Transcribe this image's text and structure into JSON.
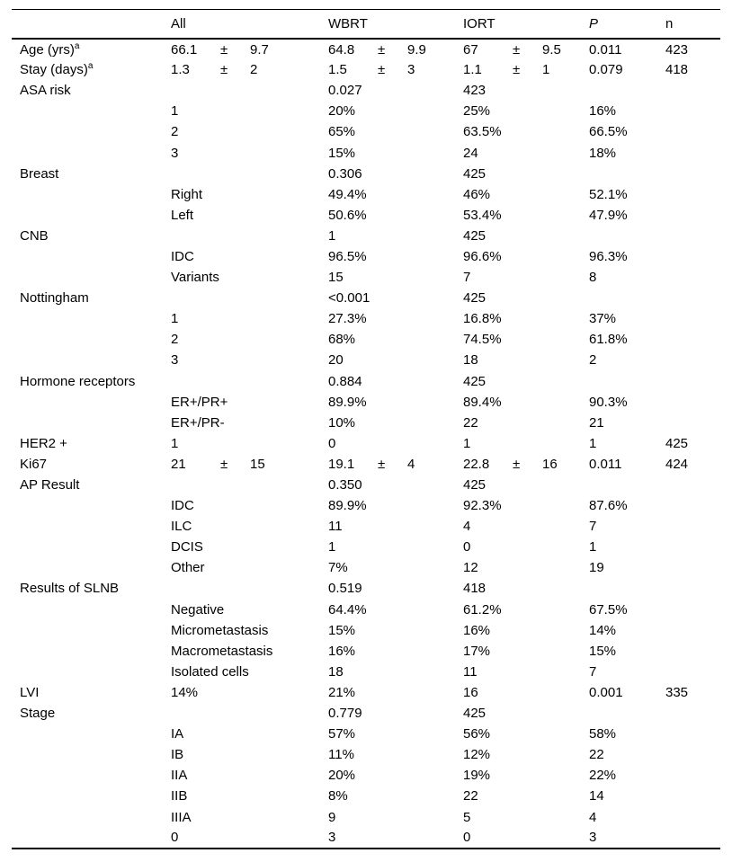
{
  "meta": {
    "plus_minus": "±",
    "text_color": "#000000",
    "background_color": "#ffffff",
    "border_color": "#000000"
  },
  "table": {
    "columns": [
      {
        "name": "label",
        "label": ""
      },
      {
        "name": "all",
        "label": "All"
      },
      {
        "name": "wbrt",
        "label": "WBRT"
      },
      {
        "name": "iort",
        "label": "IORT"
      },
      {
        "name": "p",
        "label": "P",
        "italic": true
      },
      {
        "name": "n",
        "label": "n"
      }
    ],
    "rows": [
      {
        "label": "Age (yrs)",
        "sup": "a",
        "cells": [
          [
            "66.1",
            "9.7"
          ],
          [
            "64.8",
            "9.9"
          ],
          [
            "67",
            "9.5"
          ],
          "0.011",
          "423"
        ]
      },
      {
        "label": "Stay (days)",
        "sup": "a",
        "cells": [
          [
            "1.3",
            "2"
          ],
          [
            "1.5",
            "3"
          ],
          [
            "1.1",
            "1"
          ],
          "0.079",
          "418"
        ]
      },
      {
        "label": "ASA risk",
        "cells": [
          "",
          "0.027",
          "423",
          "",
          ""
        ]
      },
      {
        "label": "",
        "cells": [
          "1",
          "20%",
          "25%",
          "16%",
          ""
        ]
      },
      {
        "label": "",
        "cells": [
          "2",
          "65%",
          "63.5%",
          "66.5%",
          ""
        ]
      },
      {
        "label": "",
        "cells": [
          "3",
          "15%",
          "24",
          "18%",
          ""
        ]
      },
      {
        "label": "Breast",
        "cells": [
          "",
          "0.306",
          "425",
          "",
          ""
        ]
      },
      {
        "label": "",
        "cells": [
          "Right",
          "49.4%",
          "46%",
          "52.1%",
          ""
        ]
      },
      {
        "label": "",
        "cells": [
          "Left",
          "50.6%",
          "53.4%",
          "47.9%",
          ""
        ]
      },
      {
        "label": "CNB",
        "cells": [
          "",
          "1",
          "425",
          "",
          ""
        ]
      },
      {
        "label": "",
        "cells": [
          "IDC",
          "96.5%",
          "96.6%",
          "96.3%",
          ""
        ]
      },
      {
        "label": "",
        "cells": [
          "Variants",
          "15",
          "7",
          "8",
          ""
        ]
      },
      {
        "label": "Nottingham",
        "cells": [
          "",
          "<0.001",
          "425",
          "",
          ""
        ]
      },
      {
        "label": "",
        "cells": [
          "1",
          "27.3%",
          "16.8%",
          "37%",
          ""
        ]
      },
      {
        "label": "",
        "cells": [
          "2",
          "68%",
          "74.5%",
          "61.8%",
          ""
        ]
      },
      {
        "label": "",
        "cells": [
          "3",
          "20",
          "18",
          "2",
          ""
        ]
      },
      {
        "label": "Hormone receptors",
        "cells": [
          "",
          "0.884",
          "425",
          "",
          ""
        ]
      },
      {
        "label": "",
        "cells": [
          "ER+/PR+",
          "89.9%",
          "89.4%",
          "90.3%",
          ""
        ]
      },
      {
        "label": "",
        "cells": [
          "ER+/PR-",
          "10%",
          "22",
          "21",
          ""
        ]
      },
      {
        "label": "HER2 +",
        "cells": [
          "1",
          "0",
          "1",
          "1",
          "425"
        ]
      },
      {
        "label": "Ki67",
        "cells": [
          [
            "21",
            "15"
          ],
          [
            "19.1",
            "4"
          ],
          [
            "22.8",
            "16"
          ],
          "0.011",
          "424"
        ]
      },
      {
        "label": "AP Result",
        "cells": [
          "",
          "0.350",
          "425",
          "",
          ""
        ]
      },
      {
        "label": "",
        "cells": [
          "IDC",
          "89.9%",
          "92.3%",
          "87.6%",
          ""
        ]
      },
      {
        "label": "",
        "cells": [
          "ILC",
          "11",
          "4",
          "7",
          ""
        ]
      },
      {
        "label": "",
        "cells": [
          "DCIS",
          "1",
          "0",
          "1",
          ""
        ]
      },
      {
        "label": "",
        "cells": [
          "Other",
          "7%",
          "12",
          "19",
          ""
        ]
      },
      {
        "label": "Results of SLNB",
        "cells": [
          "",
          "0.519",
          "418",
          "",
          ""
        ]
      },
      {
        "label": "",
        "cells": [
          "Negative",
          "64.4%",
          "61.2%",
          "67.5%",
          ""
        ]
      },
      {
        "label": "",
        "cells": [
          "Micrometastasis",
          "15%",
          "16%",
          "14%",
          ""
        ]
      },
      {
        "label": "",
        "cells": [
          "Macrometastasis",
          "16%",
          "17%",
          "15%",
          ""
        ]
      },
      {
        "label": "",
        "cells": [
          "Isolated cells",
          "18",
          "11",
          "7",
          ""
        ]
      },
      {
        "label": "LVI",
        "cells": [
          "14%",
          "21%",
          "16",
          "0.001",
          "335"
        ]
      },
      {
        "label": "Stage",
        "cells": [
          "",
          "0.779",
          "425",
          "",
          ""
        ]
      },
      {
        "label": "",
        "cells": [
          "IA",
          "57%",
          "56%",
          "58%",
          ""
        ]
      },
      {
        "label": "",
        "cells": [
          "IB",
          "11%",
          "12%",
          "22",
          ""
        ]
      },
      {
        "label": "",
        "cells": [
          "IIA",
          "20%",
          "19%",
          "22%",
          ""
        ]
      },
      {
        "label": "",
        "cells": [
          "IIB",
          "8%",
          "22",
          "14",
          ""
        ]
      },
      {
        "label": "",
        "cells": [
          "IIIA",
          "9",
          "5",
          "4",
          ""
        ]
      },
      {
        "label": "",
        "cells": [
          "0",
          "3",
          "0",
          "3",
          ""
        ]
      }
    ]
  }
}
